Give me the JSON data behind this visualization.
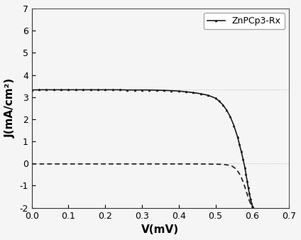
{
  "title": "",
  "xlabel": "V(mV)",
  "ylabel": "J(mA/cm²)",
  "legend_label": "ZnPCp3-Rx",
  "xlim": [
    0.0,
    0.7
  ],
  "ylim": [
    -2.0,
    7.0
  ],
  "xticks": [
    0.0,
    0.1,
    0.2,
    0.3,
    0.4,
    0.5,
    0.6,
    0.7
  ],
  "yticks": [
    -2,
    -1,
    0,
    1,
    2,
    3,
    4,
    5,
    6,
    7
  ],
  "solid_color": "#1a1a1a",
  "dashed_color": "#1a1a1a",
  "background_color": "#f5f5f5",
  "solid_x": [
    0.0,
    0.02,
    0.04,
    0.06,
    0.08,
    0.1,
    0.12,
    0.14,
    0.16,
    0.18,
    0.2,
    0.22,
    0.24,
    0.26,
    0.28,
    0.3,
    0.32,
    0.34,
    0.36,
    0.38,
    0.4,
    0.42,
    0.44,
    0.46,
    0.48,
    0.5,
    0.51,
    0.52,
    0.53,
    0.54,
    0.55,
    0.56,
    0.565,
    0.57,
    0.575,
    0.58,
    0.583,
    0.586,
    0.589,
    0.592,
    0.595,
    0.598,
    0.601
  ],
  "solid_y": [
    3.32,
    3.33,
    3.33,
    3.33,
    3.33,
    3.33,
    3.33,
    3.33,
    3.33,
    3.33,
    3.33,
    3.33,
    3.33,
    3.32,
    3.32,
    3.32,
    3.32,
    3.31,
    3.3,
    3.29,
    3.27,
    3.24,
    3.2,
    3.15,
    3.08,
    2.95,
    2.82,
    2.65,
    2.42,
    2.12,
    1.72,
    1.2,
    0.88,
    0.55,
    0.2,
    -0.18,
    -0.48,
    -0.78,
    -1.08,
    -1.35,
    -1.58,
    -1.78,
    -1.95
  ],
  "dashed_x": [
    0.0,
    0.05,
    0.1,
    0.15,
    0.2,
    0.25,
    0.3,
    0.35,
    0.4,
    0.45,
    0.5,
    0.52,
    0.53,
    0.54,
    0.545,
    0.55,
    0.555,
    0.56,
    0.565,
    0.57,
    0.575,
    0.58,
    0.585,
    0.59,
    0.595,
    0.6,
    0.605
  ],
  "dashed_y": [
    -0.02,
    -0.02,
    -0.02,
    -0.02,
    -0.02,
    -0.02,
    -0.02,
    -0.02,
    -0.02,
    -0.02,
    -0.03,
    -0.04,
    -0.06,
    -0.09,
    -0.12,
    -0.17,
    -0.24,
    -0.34,
    -0.46,
    -0.62,
    -0.82,
    -1.06,
    -1.32,
    -1.58,
    -1.8,
    -1.98,
    -2.12
  ],
  "figsize": [
    4.24,
    3.38
  ],
  "dpi": 100
}
